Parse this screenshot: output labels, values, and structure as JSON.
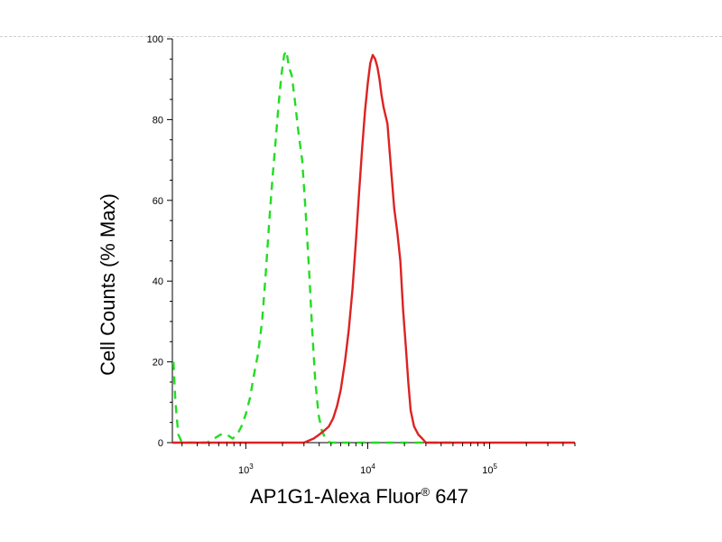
{
  "chart_data": {
    "type": "line",
    "xlabel": "AP1G1-Alexa Fluor",
    "xlabel_superscript": "®",
    "xlabel_suffix": " 647",
    "ylabel": "Cell Counts (% Max)",
    "x_scale": "log",
    "xlim": [
      250,
      500000
    ],
    "ylim": [
      0,
      100
    ],
    "y_ticks": [
      0,
      20,
      40,
      60,
      80,
      100
    ],
    "x_ticks": [
      {
        "value": 1000,
        "base": "10",
        "exp": "3"
      },
      {
        "value": 10000,
        "base": "10",
        "exp": "4"
      },
      {
        "value": 100000,
        "base": "10",
        "exp": "5"
      }
    ],
    "grid": false,
    "series": [
      {
        "color": "#22dd22",
        "style": "dashed",
        "x": [
          255,
          265,
          280,
          300,
          330,
          370,
          420,
          480,
          550,
          620,
          700,
          780,
          850,
          920,
          1000,
          1080,
          1170,
          1260,
          1360,
          1460,
          1560,
          1660,
          1760,
          1860,
          1960,
          2060,
          2150,
          2260,
          2380,
          2520,
          2700,
          2900,
          3100,
          3300,
          3500,
          3700,
          3950,
          4200,
          4500,
          4900,
          5500,
          7000,
          10000,
          20000,
          50000
        ],
        "y": [
          20,
          10,
          2,
          0,
          0,
          0,
          0,
          0,
          1,
          2,
          2,
          1,
          2,
          4,
          7,
          11,
          17,
          22,
          30,
          42,
          55,
          66,
          75,
          84,
          91,
          96,
          97,
          93,
          91,
          85,
          77,
          70,
          57,
          43,
          28,
          16,
          7,
          3,
          1,
          0,
          0,
          0,
          0,
          0,
          0
        ]
      },
      {
        "color": "#dd2222",
        "style": "solid",
        "x": [
          250,
          3000,
          3600,
          4000,
          4400,
          4800,
          5200,
          5600,
          6000,
          6500,
          7000,
          7500,
          8000,
          8500,
          9000,
          9500,
          10000,
          10500,
          11000,
          11500,
          12000,
          12500,
          13000,
          13500,
          14500,
          15500,
          16500,
          17500,
          18500,
          19500,
          20500,
          21500,
          22500,
          24000,
          26000,
          28000,
          30000,
          34000,
          40000,
          500000
        ],
        "y": [
          0,
          0,
          1,
          2,
          3,
          4,
          6,
          9,
          13,
          20,
          28,
          38,
          50,
          62,
          73,
          82,
          89,
          94,
          96,
          95,
          93,
          90,
          86,
          83,
          79,
          68,
          58,
          52,
          45,
          33,
          24,
          15,
          8,
          4,
          2,
          1,
          0,
          0,
          0,
          0
        ]
      }
    ]
  }
}
